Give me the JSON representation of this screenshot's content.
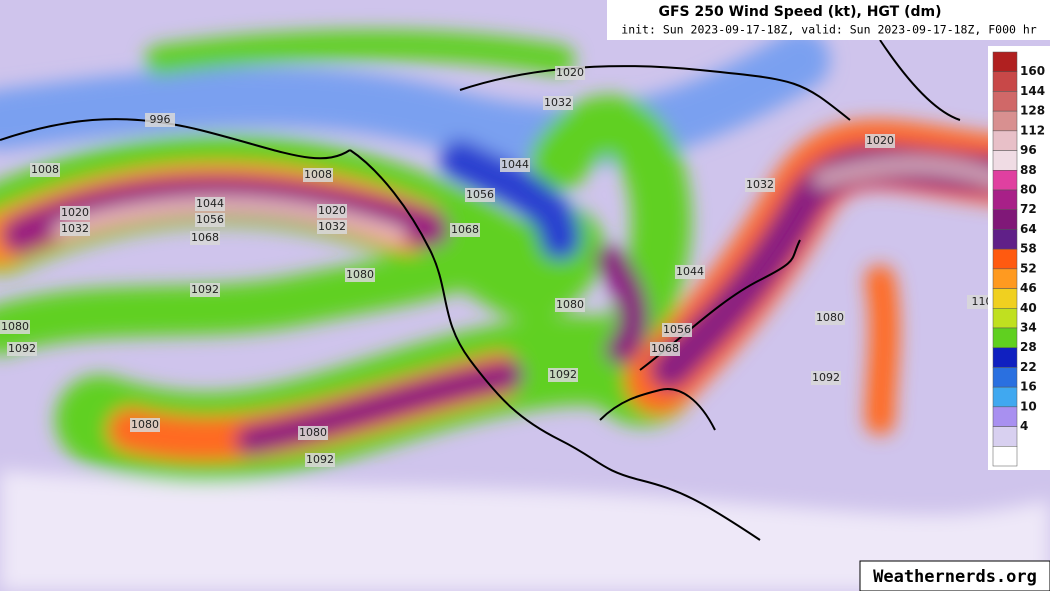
{
  "header": {
    "title": "GFS 250 Wind Speed (kt), HGT (dm)",
    "subtitle": "init: Sun 2023-09-17-18Z, valid: Sun 2023-09-17-18Z, F000 hr"
  },
  "colorbar": {
    "levels": [
      160,
      144,
      128,
      112,
      96,
      88,
      80,
      72,
      64,
      58,
      52,
      46,
      40,
      34,
      28,
      22,
      16,
      10,
      4
    ],
    "colors": [
      "#b02020",
      "#c84848",
      "#d06868",
      "#d89090",
      "#e8c0c8",
      "#f0dce4",
      "#e040a0",
      "#a82088",
      "#801878",
      "#602088",
      "#ff5a10",
      "#ff9a20",
      "#f0d020",
      "#c0e020",
      "#60d020",
      "#1020c0",
      "#2a70e0",
      "#40a8f0",
      "#a890f0",
      "#d8d0f0",
      "#ffffff"
    ]
  },
  "contour_labels": [
    "996",
    "1008",
    "1020",
    "1032",
    "1044",
    "1056",
    "1068",
    "1008",
    "1020",
    "1032",
    "1080",
    "1092",
    "1080",
    "1092",
    "1080",
    "1080",
    "1092",
    "1020",
    "1032",
    "1044",
    "1056",
    "1068",
    "1080",
    "1092",
    "1044",
    "1056",
    "1068",
    "1032",
    "1020",
    "1080",
    "1092",
    "110"
  ],
  "watermark": "Weathernerds.org"
}
